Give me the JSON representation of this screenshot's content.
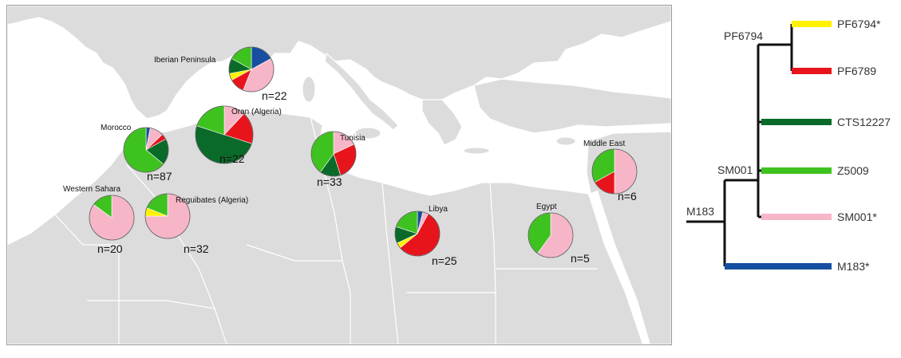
{
  "colors": {
    "PF6794*": "#fff200",
    "PF6789": "#e8141c",
    "CTS12227": "#0a6a2a",
    "Z5009": "#3ec21f",
    "SM001*": "#f7b6c8",
    "M183*": "#164f9f",
    "land": "#dcdcdc",
    "sea": "#ffffff"
  },
  "map": {
    "regions": [
      {
        "name": "Iberian Peninsula",
        "n": "n=22",
        "shares": {
          "M183*": 0.17,
          "SM001*": 0.39,
          "PF6789": 0.11,
          "PF6794*": 0.05,
          "CTS12227": 0.11,
          "Z5009": 0.17
        }
      },
      {
        "name": "Oran (Algeria)",
        "n": "n=22",
        "shares": {
          "M183*": 0.0,
          "SM001*": 0.12,
          "PF6789": 0.18,
          "PF6794*": 0.0,
          "CTS12227": 0.5,
          "Z5009": 0.2
        }
      },
      {
        "name": "Morocco",
        "n": "n=87",
        "shares": {
          "M183*": 0.03,
          "SM001*": 0.1,
          "PF6789": 0.04,
          "PF6794*": 0.0,
          "CTS12227": 0.19,
          "Z5009": 0.64
        }
      },
      {
        "name": "Tunisia",
        "n": "n=33",
        "shares": {
          "M183*": 0.0,
          "SM001*": 0.18,
          "PF6789": 0.27,
          "PF6794*": 0.0,
          "CTS12227": 0.15,
          "Z5009": 0.4
        }
      },
      {
        "name": "Middle East",
        "n": "n=6",
        "shares": {
          "M183*": 0.0,
          "SM001*": 0.5,
          "PF6789": 0.17,
          "PF6794*": 0.0,
          "CTS12227": 0.0,
          "Z5009": 0.33
        }
      },
      {
        "name": "Western Sahara",
        "n": "n=20",
        "shares": {
          "M183*": 0.0,
          "SM001*": 0.85,
          "PF6789": 0.0,
          "PF6794*": 0.0,
          "CTS12227": 0.0,
          "Z5009": 0.15
        }
      },
      {
        "name": "Reguibates (Algeria)",
        "n": "n=32",
        "shares": {
          "M183*": 0.0,
          "SM001*": 0.75,
          "PF6789": 0.0,
          "PF6794*": 0.06,
          "CTS12227": 0.0,
          "Z5009": 0.19
        }
      },
      {
        "name": "Libya",
        "n": "n=25",
        "shares": {
          "M183*": 0.04,
          "SM001*": 0.04,
          "PF6789": 0.56,
          "PF6794*": 0.04,
          "CTS12227": 0.12,
          "Z5009": 0.2
        }
      },
      {
        "name": "Egypt",
        "n": "n=5",
        "shares": {
          "M183*": 0.0,
          "SM001*": 0.6,
          "PF6789": 0.0,
          "PF6794*": 0.0,
          "CTS12227": 0.0,
          "Z5009": 0.4
        }
      }
    ]
  },
  "tree": {
    "root": "M183",
    "nodes": [
      "SM001",
      "PF6794"
    ],
    "leaves": [
      "PF6794*",
      "PF6789",
      "CTS12227",
      "Z5009",
      "SM001*",
      "M183*"
    ]
  }
}
